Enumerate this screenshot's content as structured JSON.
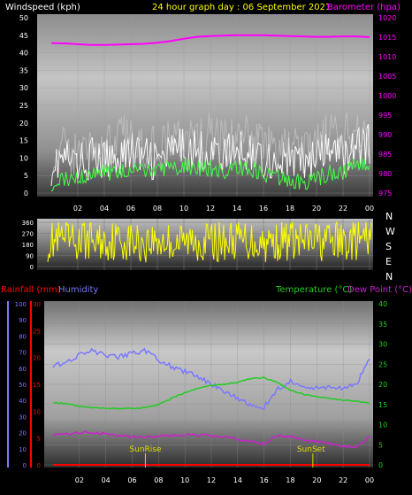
{
  "colors": {
    "background": "#000000",
    "wind_avg": "#ffffff",
    "wind_gust": "#c8c8c8",
    "wind_min": "#44ff44",
    "barometer": "#ff00ff",
    "direction": "#ffff00",
    "rainfall": "#ff0000",
    "humidity": "#7b78ff",
    "temperature": "#22cc22",
    "dewpoint": "#cc22cc",
    "title": "#ffff00",
    "axis_text": "#ffffff"
  },
  "chart_data": [
    {
      "type": "line",
      "title": "24 hour graph day : 06 September 2021",
      "ylabel": "Windspeed (kph)",
      "y2label": "Barometer (hpa)",
      "x_ticks": [
        "02",
        "04",
        "06",
        "08",
        "10",
        "12",
        "14",
        "16",
        "18",
        "20",
        "22",
        "00"
      ],
      "x": [
        0,
        1,
        2,
        3,
        4,
        5,
        6,
        7,
        8,
        9,
        10,
        11,
        12,
        13,
        14,
        15,
        16,
        17,
        18,
        19,
        20,
        21,
        22,
        23,
        24
      ],
      "ylim": [
        0,
        50
      ],
      "y_ticks": [
        "0",
        "5",
        "10",
        "15",
        "20",
        "25",
        "30",
        "35",
        "40",
        "45",
        "50"
      ],
      "y2lim": [
        975,
        1020
      ],
      "y2_ticks": [
        "975",
        "980",
        "985",
        "990",
        "995",
        "1000",
        "1005",
        "1010",
        "1015",
        "1020"
      ],
      "series": [
        {
          "name": "Windspeed",
          "axis": "left",
          "style": "spiky",
          "values": [
            8,
            10,
            8,
            10,
            9,
            11,
            12,
            10,
            9,
            11,
            13,
            12,
            12,
            11,
            12,
            12,
            10,
            9,
            10,
            9,
            10,
            12,
            11,
            13,
            14
          ]
        },
        {
          "name": "Gust",
          "axis": "left",
          "style": "spiky",
          "values": [
            10,
            12,
            11,
            14,
            12,
            15,
            16,
            14,
            13,
            15,
            16,
            15,
            16,
            14,
            15,
            16,
            14,
            12,
            13,
            12,
            14,
            16,
            15,
            18,
            17
          ]
        },
        {
          "name": "Wind low",
          "axis": "left",
          "style": "spiky",
          "values": [
            3,
            4,
            5,
            5,
            6,
            6,
            7,
            6,
            6,
            7,
            8,
            7,
            7,
            6,
            7,
            7,
            5,
            4,
            4,
            3,
            4,
            6,
            6,
            8,
            9
          ]
        },
        {
          "name": "Barometer",
          "axis": "right",
          "style": "line",
          "values": [
            1013.5,
            1013.4,
            1013.2,
            1013.0,
            1013.0,
            1013.1,
            1013.2,
            1013.3,
            1013.6,
            1014.0,
            1014.6,
            1015.1,
            1015.3,
            1015.4,
            1015.5,
            1015.5,
            1015.5,
            1015.4,
            1015.3,
            1015.2,
            1015.1,
            1015.1,
            1015.2,
            1015.2,
            1015.0
          ]
        }
      ]
    },
    {
      "type": "line",
      "title": "",
      "ylim": [
        0,
        360
      ],
      "y_ticks": [
        "0",
        "90",
        "180",
        "270",
        "360"
      ],
      "compass": [
        "N",
        "W",
        "S",
        "E",
        "N"
      ],
      "x_ticks": [
        "02",
        "04",
        "06",
        "08",
        "10",
        "12",
        "14",
        "16",
        "18",
        "20",
        "22",
        "00"
      ],
      "x": [
        0,
        1,
        2,
        3,
        4,
        5,
        6,
        7,
        8,
        9,
        10,
        11,
        12,
        13,
        14,
        15,
        16,
        17,
        18,
        19,
        20,
        21,
        22,
        23,
        24
      ],
      "series": [
        {
          "name": "Wind direction",
          "style": "spiky",
          "values": [
            200,
            210,
            190,
            220,
            200,
            215,
            205,
            190,
            210,
            200,
            195,
            210,
            205,
            200,
            220,
            210,
            195,
            205,
            215,
            200,
            210,
            205,
            200,
            210,
            205
          ]
        }
      ]
    },
    {
      "type": "line",
      "left_label": "Rainfall (mm)",
      "left2_label": "Humidity",
      "right_label": "Temperature (°C)",
      "right2_label": "Dew Point (°C)",
      "x_ticks": [
        "02",
        "04",
        "06",
        "08",
        "10",
        "12",
        "14",
        "16",
        "18",
        "20",
        "22",
        "00"
      ],
      "x": [
        0,
        1,
        2,
        3,
        4,
        5,
        6,
        7,
        8,
        9,
        10,
        11,
        12,
        13,
        14,
        15,
        16,
        17,
        18,
        19,
        20,
        21,
        22,
        23,
        24
      ],
      "rain_ylim": [
        0,
        30
      ],
      "rain_ticks": [
        "0",
        "5",
        "10",
        "15",
        "20",
        "25",
        "30"
      ],
      "humidity_ylim": [
        0,
        100
      ],
      "humidity_ticks": [
        "0",
        "10",
        "20",
        "30",
        "40",
        "50",
        "60",
        "70",
        "80",
        "90",
        "100"
      ],
      "temp_ylim": [
        0,
        40
      ],
      "temp_ticks": [
        "0",
        "5",
        "10",
        "15",
        "20",
        "25",
        "30",
        "35",
        "40"
      ],
      "annotations": [
        "SunRise",
        "SunSet"
      ],
      "sunrise_hour": 7.0,
      "sunset_hour": 19.7,
      "series": [
        {
          "name": "Rainfall",
          "axis": "rain",
          "values": [
            0,
            0,
            0,
            0,
            0,
            0,
            0,
            0,
            0,
            0,
            0,
            0,
            0,
            0,
            0,
            0,
            0,
            0,
            0,
            0,
            0,
            0,
            0,
            0,
            0
          ]
        },
        {
          "name": "Humidity",
          "axis": "humidity",
          "values": [
            62,
            63,
            68,
            71,
            68,
            67,
            69,
            71,
            65,
            61,
            58,
            55,
            50,
            46,
            41,
            37,
            36,
            47,
            52,
            49,
            48,
            48,
            48,
            50,
            66
          ]
        },
        {
          "name": "Temperature",
          "axis": "temp",
          "values": [
            15.5,
            15.2,
            14.6,
            14.2,
            14.0,
            14.0,
            14.0,
            14.2,
            15.0,
            16.5,
            18.0,
            19.0,
            19.7,
            20.0,
            20.5,
            21.4,
            21.6,
            20.5,
            18.5,
            17.5,
            17.0,
            16.5,
            16.1,
            15.8,
            15.2
          ]
        },
        {
          "name": "Dew Point",
          "axis": "temp",
          "values": [
            7.5,
            7.7,
            8.0,
            8.0,
            7.6,
            7.2,
            7.0,
            7.0,
            7.1,
            7.3,
            7.4,
            7.4,
            7.2,
            7.0,
            6.3,
            5.8,
            5.2,
            7.4,
            7.0,
            6.3,
            5.8,
            5.2,
            4.6,
            4.4,
            7.0
          ]
        }
      ]
    }
  ]
}
